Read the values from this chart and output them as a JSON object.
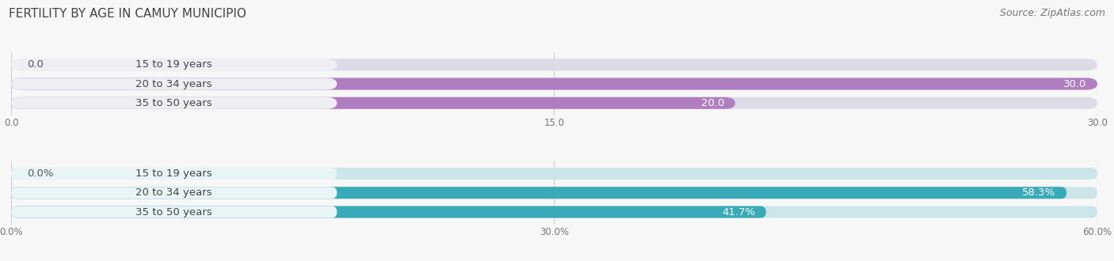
{
  "title": "FERTILITY BY AGE IN CAMUY MUNICIPIO",
  "source": "Source: ZipAtlas.com",
  "top_chart": {
    "categories": [
      "15 to 19 years",
      "20 to 34 years",
      "35 to 50 years"
    ],
    "values": [
      0.0,
      30.0,
      20.0
    ],
    "bar_color": "#b07ec0",
    "bar_bg_color": "#dcdce8",
    "label_bg_color": "#f0eef5",
    "xlim": [
      0,
      30.0
    ],
    "xticks": [
      0.0,
      15.0,
      30.0
    ],
    "xtick_labels": [
      "0.0",
      "15.0",
      "30.0"
    ]
  },
  "bottom_chart": {
    "categories": [
      "15 to 19 years",
      "20 to 34 years",
      "35 to 50 years"
    ],
    "values": [
      0.0,
      58.3,
      41.7
    ],
    "bar_color": "#39aab8",
    "bar_bg_color": "#cce5e8",
    "label_bg_color": "#e8f4f6",
    "xlim": [
      0,
      60.0
    ],
    "xticks": [
      0.0,
      30.0,
      60.0
    ],
    "xtick_labels": [
      "0.0%",
      "30.0%",
      "60.0%"
    ]
  },
  "text_dark": "#444444",
  "value_color_inside": "#ffffff",
  "value_color_outside": "#555555",
  "bg_color": "#f7f7f7",
  "bar_height": 0.62,
  "label_fontsize": 9.5,
  "value_fontsize": 9.5,
  "title_fontsize": 11,
  "source_fontsize": 9
}
